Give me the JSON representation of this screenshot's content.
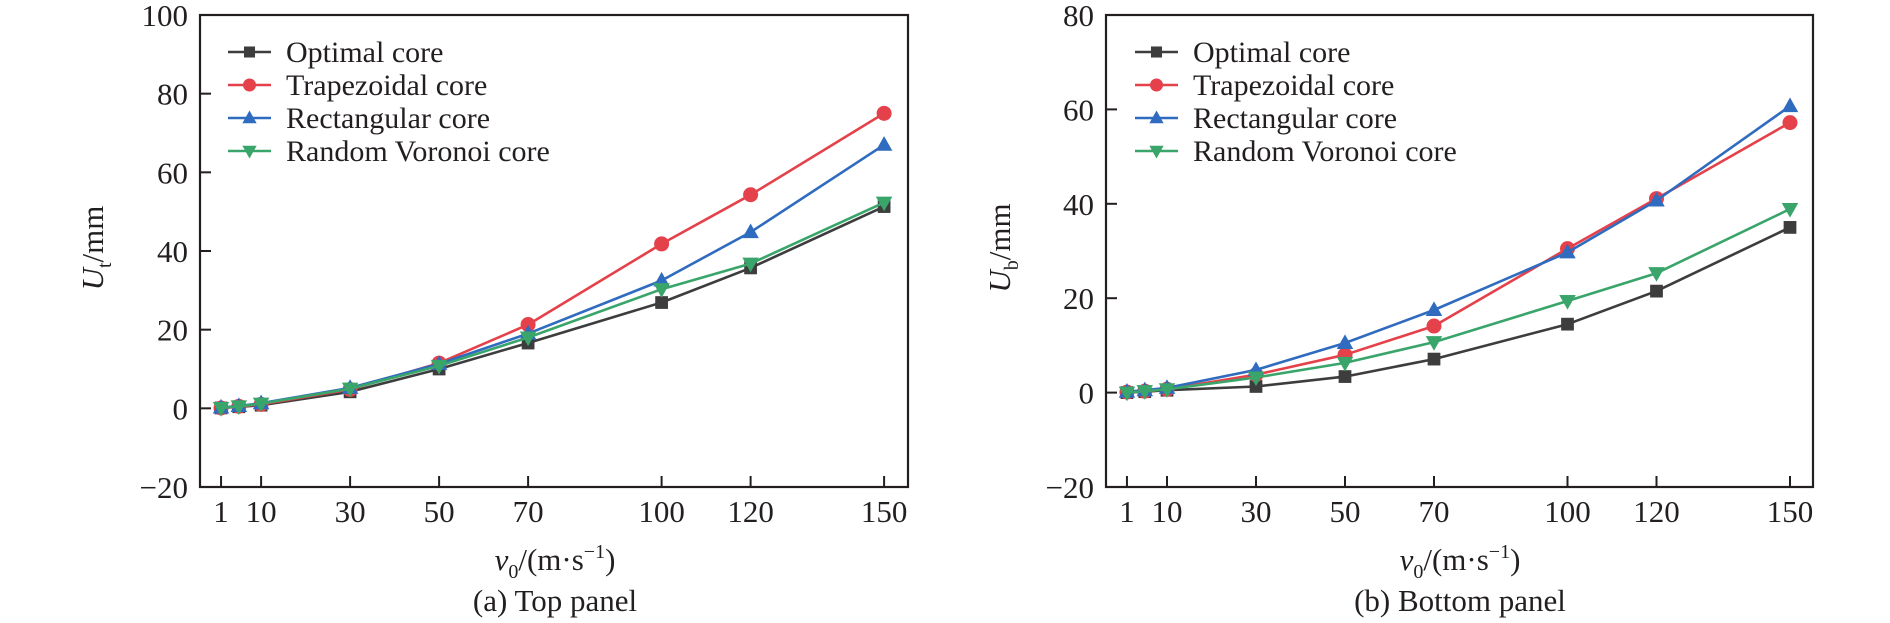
{
  "colors": {
    "optimal": "#3d3d3d",
    "trapezoidal": "#e5414a",
    "rectangular": "#2f6bbf",
    "voronoi": "#3aa56a",
    "axis": "#231f20"
  },
  "chart_data": [
    {
      "type": "line",
      "panel_id": "a",
      "title": "(a) Top panel",
      "xlabel": {
        "var": "v",
        "sub": "0",
        "unit_pre": "/(m·s",
        "sup": "−1",
        "unit_post": ")"
      },
      "ylabel": {
        "var": "U",
        "sub": "t",
        "unit": "/mm"
      },
      "xlim": [
        0,
        155
      ],
      "ylim": [
        -20,
        100
      ],
      "xticks": [
        1,
        10,
        30,
        50,
        70,
        100,
        120,
        150
      ],
      "xtick_labels": [
        "1",
        "10",
        "30",
        "50",
        "70",
        "100",
        "120",
        "150"
      ],
      "yticks": [
        -20,
        0,
        20,
        40,
        60,
        80,
        100
      ],
      "ytick_labels": [
        "−20",
        "0",
        "20",
        "40",
        "60",
        "80",
        "100"
      ],
      "grid": false,
      "legend_position": "top-left",
      "x": [
        1,
        5,
        10,
        30,
        50,
        70,
        100,
        120,
        150
      ],
      "series": [
        {
          "key": "optimal",
          "name": "Optimal core",
          "marker": "square",
          "values": [
            0.1,
            0.4,
            0.8,
            4.2,
            10.0,
            16.6,
            26.9,
            35.7,
            51.3
          ]
        },
        {
          "key": "trapezoidal",
          "name": "Trapezoidal core",
          "marker": "circle",
          "values": [
            0.1,
            0.5,
            1.0,
            4.8,
            11.5,
            21.3,
            41.8,
            54.3,
            75.0
          ]
        },
        {
          "key": "rectangular",
          "name": "Rectangular core",
          "marker": "triangle-up",
          "values": [
            0.2,
            0.6,
            1.3,
            5.2,
            11.3,
            19.0,
            32.5,
            44.8,
            67.0
          ]
        },
        {
          "key": "voronoi",
          "name": "Random Voronoi core",
          "marker": "triangle-down",
          "values": [
            0.1,
            0.5,
            1.2,
            5.0,
            10.8,
            18.0,
            30.3,
            36.8,
            52.3
          ]
        }
      ]
    },
    {
      "type": "line",
      "panel_id": "b",
      "title": "(b) Bottom panel",
      "xlabel": {
        "var": "v",
        "sub": "0",
        "unit_pre": "/(m·s",
        "sup": "−1",
        "unit_post": ")"
      },
      "ylabel": {
        "var": "U",
        "sub": "b",
        "unit": "/mm"
      },
      "xlim": [
        0,
        155
      ],
      "ylim": [
        -20,
        80
      ],
      "xticks": [
        1,
        10,
        30,
        50,
        70,
        100,
        120,
        150
      ],
      "xtick_labels": [
        "1",
        "10",
        "30",
        "50",
        "70",
        "100",
        "120",
        "150"
      ],
      "yticks": [
        -20,
        0,
        20,
        40,
        60,
        80
      ],
      "ytick_labels": [
        "−20",
        "0",
        "20",
        "40",
        "60",
        "80"
      ],
      "grid": false,
      "legend_position": "top-left",
      "x": [
        1,
        5,
        10,
        30,
        50,
        70,
        100,
        120,
        150
      ],
      "series": [
        {
          "key": "optimal",
          "name": "Optimal core",
          "marker": "square",
          "values": [
            0.0,
            0.2,
            0.5,
            1.3,
            3.4,
            7.1,
            14.5,
            21.5,
            35.0
          ]
        },
        {
          "key": "trapezoidal",
          "name": "Trapezoidal core",
          "marker": "circle",
          "values": [
            0.1,
            0.3,
            0.7,
            3.8,
            8.0,
            14.1,
            30.5,
            41.1,
            57.2
          ]
        },
        {
          "key": "rectangular",
          "name": "Rectangular core",
          "marker": "triangle-up",
          "values": [
            0.2,
            0.5,
            1.0,
            4.8,
            10.5,
            17.5,
            29.7,
            40.7,
            60.7
          ]
        },
        {
          "key": "voronoi",
          "name": "Random Voronoi core",
          "marker": "triangle-down",
          "values": [
            0.0,
            0.3,
            0.7,
            3.2,
            6.3,
            10.7,
            19.4,
            25.3,
            38.9
          ]
        }
      ]
    }
  ]
}
